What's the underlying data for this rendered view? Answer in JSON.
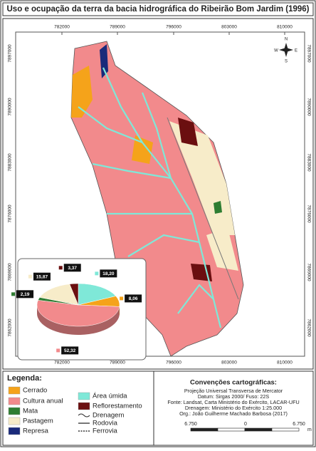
{
  "title": "Uso e ocupação da terra da bacia hidrográfica do Ribeirão Bom Jardim (1996)",
  "map": {
    "x_labels": [
      "782000",
      "789000",
      "796000",
      "803000",
      "810000"
    ],
    "y_labels": [
      "7897000",
      "7890000",
      "7883000",
      "7876000",
      "7869000",
      "7862000"
    ],
    "compass": [
      "N",
      "S",
      "E",
      "W"
    ]
  },
  "legend": {
    "title": "Legenda:",
    "areas": [
      {
        "label": "Cerrado",
        "color": "#f5a31a"
      },
      {
        "label": "Cultura anual",
        "color": "#f28a8c"
      },
      {
        "label": "Mata",
        "color": "#2e7d32"
      },
      {
        "label": "Pastagem",
        "color": "#f7ecc9"
      },
      {
        "label": "Represa",
        "color": "#1a2a7a"
      },
      {
        "label": "Área úmida",
        "color": "#7fe8d8"
      },
      {
        "label": "Reflorestamento",
        "color": "#6b0f10"
      }
    ],
    "lines": [
      "Drenagem",
      "Rodovia",
      "Ferrovia"
    ]
  },
  "conventions": {
    "title": "Convenções cartográficas:",
    "lines": [
      "Projeção Universal Transversa de Mercator",
      "Datum: Sirgas 2000/ Fuso: 22S",
      "Fonte: Landsat, Carta Ministério do Exército, LACAR-UFU",
      "Drenagem: Ministério do Exército 1:25.000",
      "Org.: João Guilherme Machado Barbosa (2017)"
    ]
  },
  "scale": {
    "labels": [
      "6.750",
      "0",
      "6.750"
    ],
    "unit": "m"
  },
  "chart_data": {
    "type": "pie",
    "values": [
      18.2,
      8.06,
      52.32,
      2.19,
      15.87,
      3.37
    ],
    "value_labels": [
      "18,20",
      "8,06",
      "52,32",
      "2,19",
      "15,87",
      "3,37"
    ],
    "colors": [
      "#7fe8d8",
      "#f5a31a",
      "#f28a8c",
      "#2e7d32",
      "#f7ecc9",
      "#6b0f10"
    ]
  }
}
